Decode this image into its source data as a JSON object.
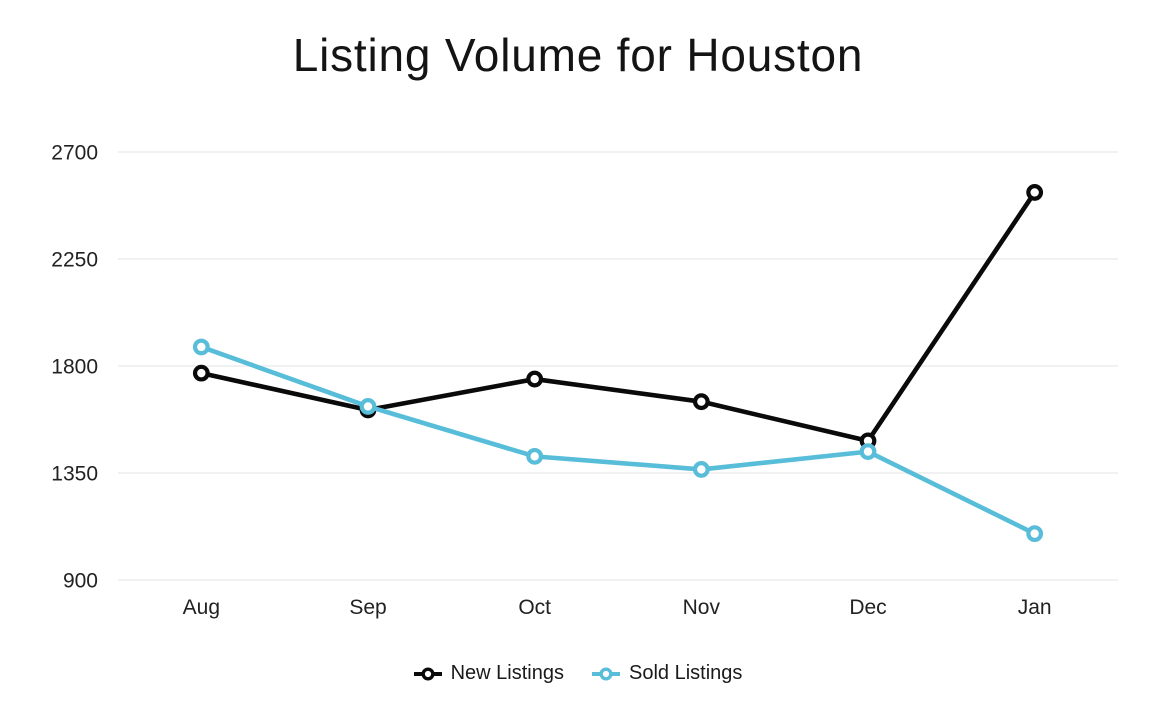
{
  "title": "Listing Volume for Houston",
  "colors": {
    "background": "#ffffff",
    "title_text": "#141414",
    "tick_text": "#222222",
    "gridline": "#f1f1f1",
    "new_listings": "#0a0a0a",
    "sold_listings": "#57bdd8",
    "marker_fill": "#ffffff"
  },
  "chart_data": {
    "type": "line",
    "title": "Listing Volume for Houston",
    "categories": [
      "Aug",
      "Sep",
      "Oct",
      "Nov",
      "Dec",
      "Jan"
    ],
    "series": [
      {
        "name": "New Listings",
        "color": "#0a0a0a",
        "values": [
          1770,
          1615,
          1745,
          1650,
          1485,
          2530
        ]
      },
      {
        "name": "Sold Listings",
        "color": "#57bdd8",
        "values": [
          1880,
          1630,
          1420,
          1365,
          1440,
          1095
        ]
      }
    ],
    "xlabel": "",
    "ylabel": "",
    "ylim": [
      900,
      2700
    ],
    "yticks": [
      900,
      1350,
      1800,
      2250,
      2700
    ],
    "grid": "horizontal-only",
    "marker": "open-circle",
    "legend_position": "bottom-center"
  }
}
